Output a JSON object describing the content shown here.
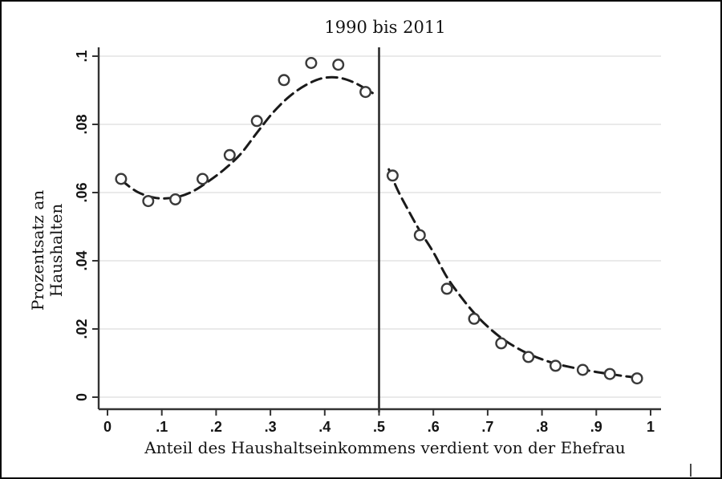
{
  "chart_data": {
    "type": "scatter",
    "title": "1990 bis 2011",
    "xlabel": "Anteil des Haushaltseinkommens verdient von der Ehefrau",
    "ylabel": "Prozentsatz an Haushalten",
    "ylabel_lines": [
      "Prozentsatz an",
      "Haushalten"
    ],
    "xlim": [
      0,
      1
    ],
    "ylim": [
      0,
      0.1
    ],
    "grid": "horizontal-only",
    "legend": "none",
    "ref_line_x": 0.5,
    "x_ticks": {
      "values": [
        0,
        0.1,
        0.2,
        0.3,
        0.4,
        0.5,
        0.6,
        0.7,
        0.8,
        0.9,
        1
      ],
      "labels": [
        "0",
        ".1",
        ".2",
        ".3",
        ".4",
        ".5",
        ".6",
        ".7",
        ".8",
        ".9",
        "1"
      ]
    },
    "y_ticks": {
      "values": [
        0,
        0.02,
        0.04,
        0.06,
        0.08,
        0.1
      ],
      "labels": [
        "0",
        ".02",
        ".04",
        ".06",
        ".08",
        ".1"
      ]
    },
    "series": [
      {
        "name": "anteil-haushalte-links",
        "type": "scatter",
        "marker": "open-circle",
        "points": [
          [
            0.025,
            0.064
          ],
          [
            0.075,
            0.0575
          ],
          [
            0.125,
            0.058
          ],
          [
            0.175,
            0.064
          ],
          [
            0.225,
            0.071
          ],
          [
            0.275,
            0.081
          ],
          [
            0.325,
            0.093
          ],
          [
            0.375,
            0.098
          ],
          [
            0.425,
            0.0975
          ],
          [
            0.475,
            0.0895
          ]
        ]
      },
      {
        "name": "anteil-haushalte-rechts",
        "type": "scatter",
        "marker": "open-circle",
        "points": [
          [
            0.525,
            0.065
          ],
          [
            0.575,
            0.0475
          ],
          [
            0.625,
            0.0318
          ],
          [
            0.675,
            0.023
          ],
          [
            0.725,
            0.0158
          ],
          [
            0.775,
            0.0118
          ],
          [
            0.825,
            0.0092
          ],
          [
            0.875,
            0.008
          ],
          [
            0.925,
            0.0068
          ],
          [
            0.975,
            0.0055
          ]
        ]
      },
      {
        "name": "glaettung-links",
        "type": "line",
        "style": "dashed",
        "points": [
          [
            0.025,
            0.0637
          ],
          [
            0.055,
            0.0602
          ],
          [
            0.09,
            0.0584
          ],
          [
            0.125,
            0.0586
          ],
          [
            0.155,
            0.0602
          ],
          [
            0.185,
            0.0632
          ],
          [
            0.215,
            0.0668
          ],
          [
            0.245,
            0.0713
          ],
          [
            0.275,
            0.0775
          ],
          [
            0.305,
            0.0835
          ],
          [
            0.335,
            0.0882
          ],
          [
            0.365,
            0.0915
          ],
          [
            0.395,
            0.0935
          ],
          [
            0.425,
            0.0937
          ],
          [
            0.455,
            0.0922
          ],
          [
            0.488,
            0.0892
          ]
        ]
      },
      {
        "name": "glaettung-rechts",
        "type": "line",
        "style": "dashed",
        "points": [
          [
            0.518,
            0.0668
          ],
          [
            0.535,
            0.0605
          ],
          [
            0.555,
            0.0545
          ],
          [
            0.575,
            0.0488
          ],
          [
            0.6,
            0.0425
          ],
          [
            0.625,
            0.0352
          ],
          [
            0.65,
            0.0296
          ],
          [
            0.675,
            0.0247
          ],
          [
            0.7,
            0.0207
          ],
          [
            0.725,
            0.0174
          ],
          [
            0.75,
            0.0148
          ],
          [
            0.775,
            0.0127
          ],
          [
            0.8,
            0.0111
          ],
          [
            0.825,
            0.0098
          ],
          [
            0.85,
            0.0089
          ],
          [
            0.875,
            0.0081
          ],
          [
            0.9,
            0.0074
          ],
          [
            0.925,
            0.0068
          ],
          [
            0.95,
            0.0062
          ],
          [
            0.975,
            0.0057
          ]
        ]
      }
    ],
    "colors": {
      "marker": "#3a3a3a",
      "fit_line": "#1a1a1a",
      "grid_line": "#e3e3e3",
      "axis_line": "#333333",
      "ref_line": "#2b2b2b",
      "text": "#141414"
    }
  }
}
